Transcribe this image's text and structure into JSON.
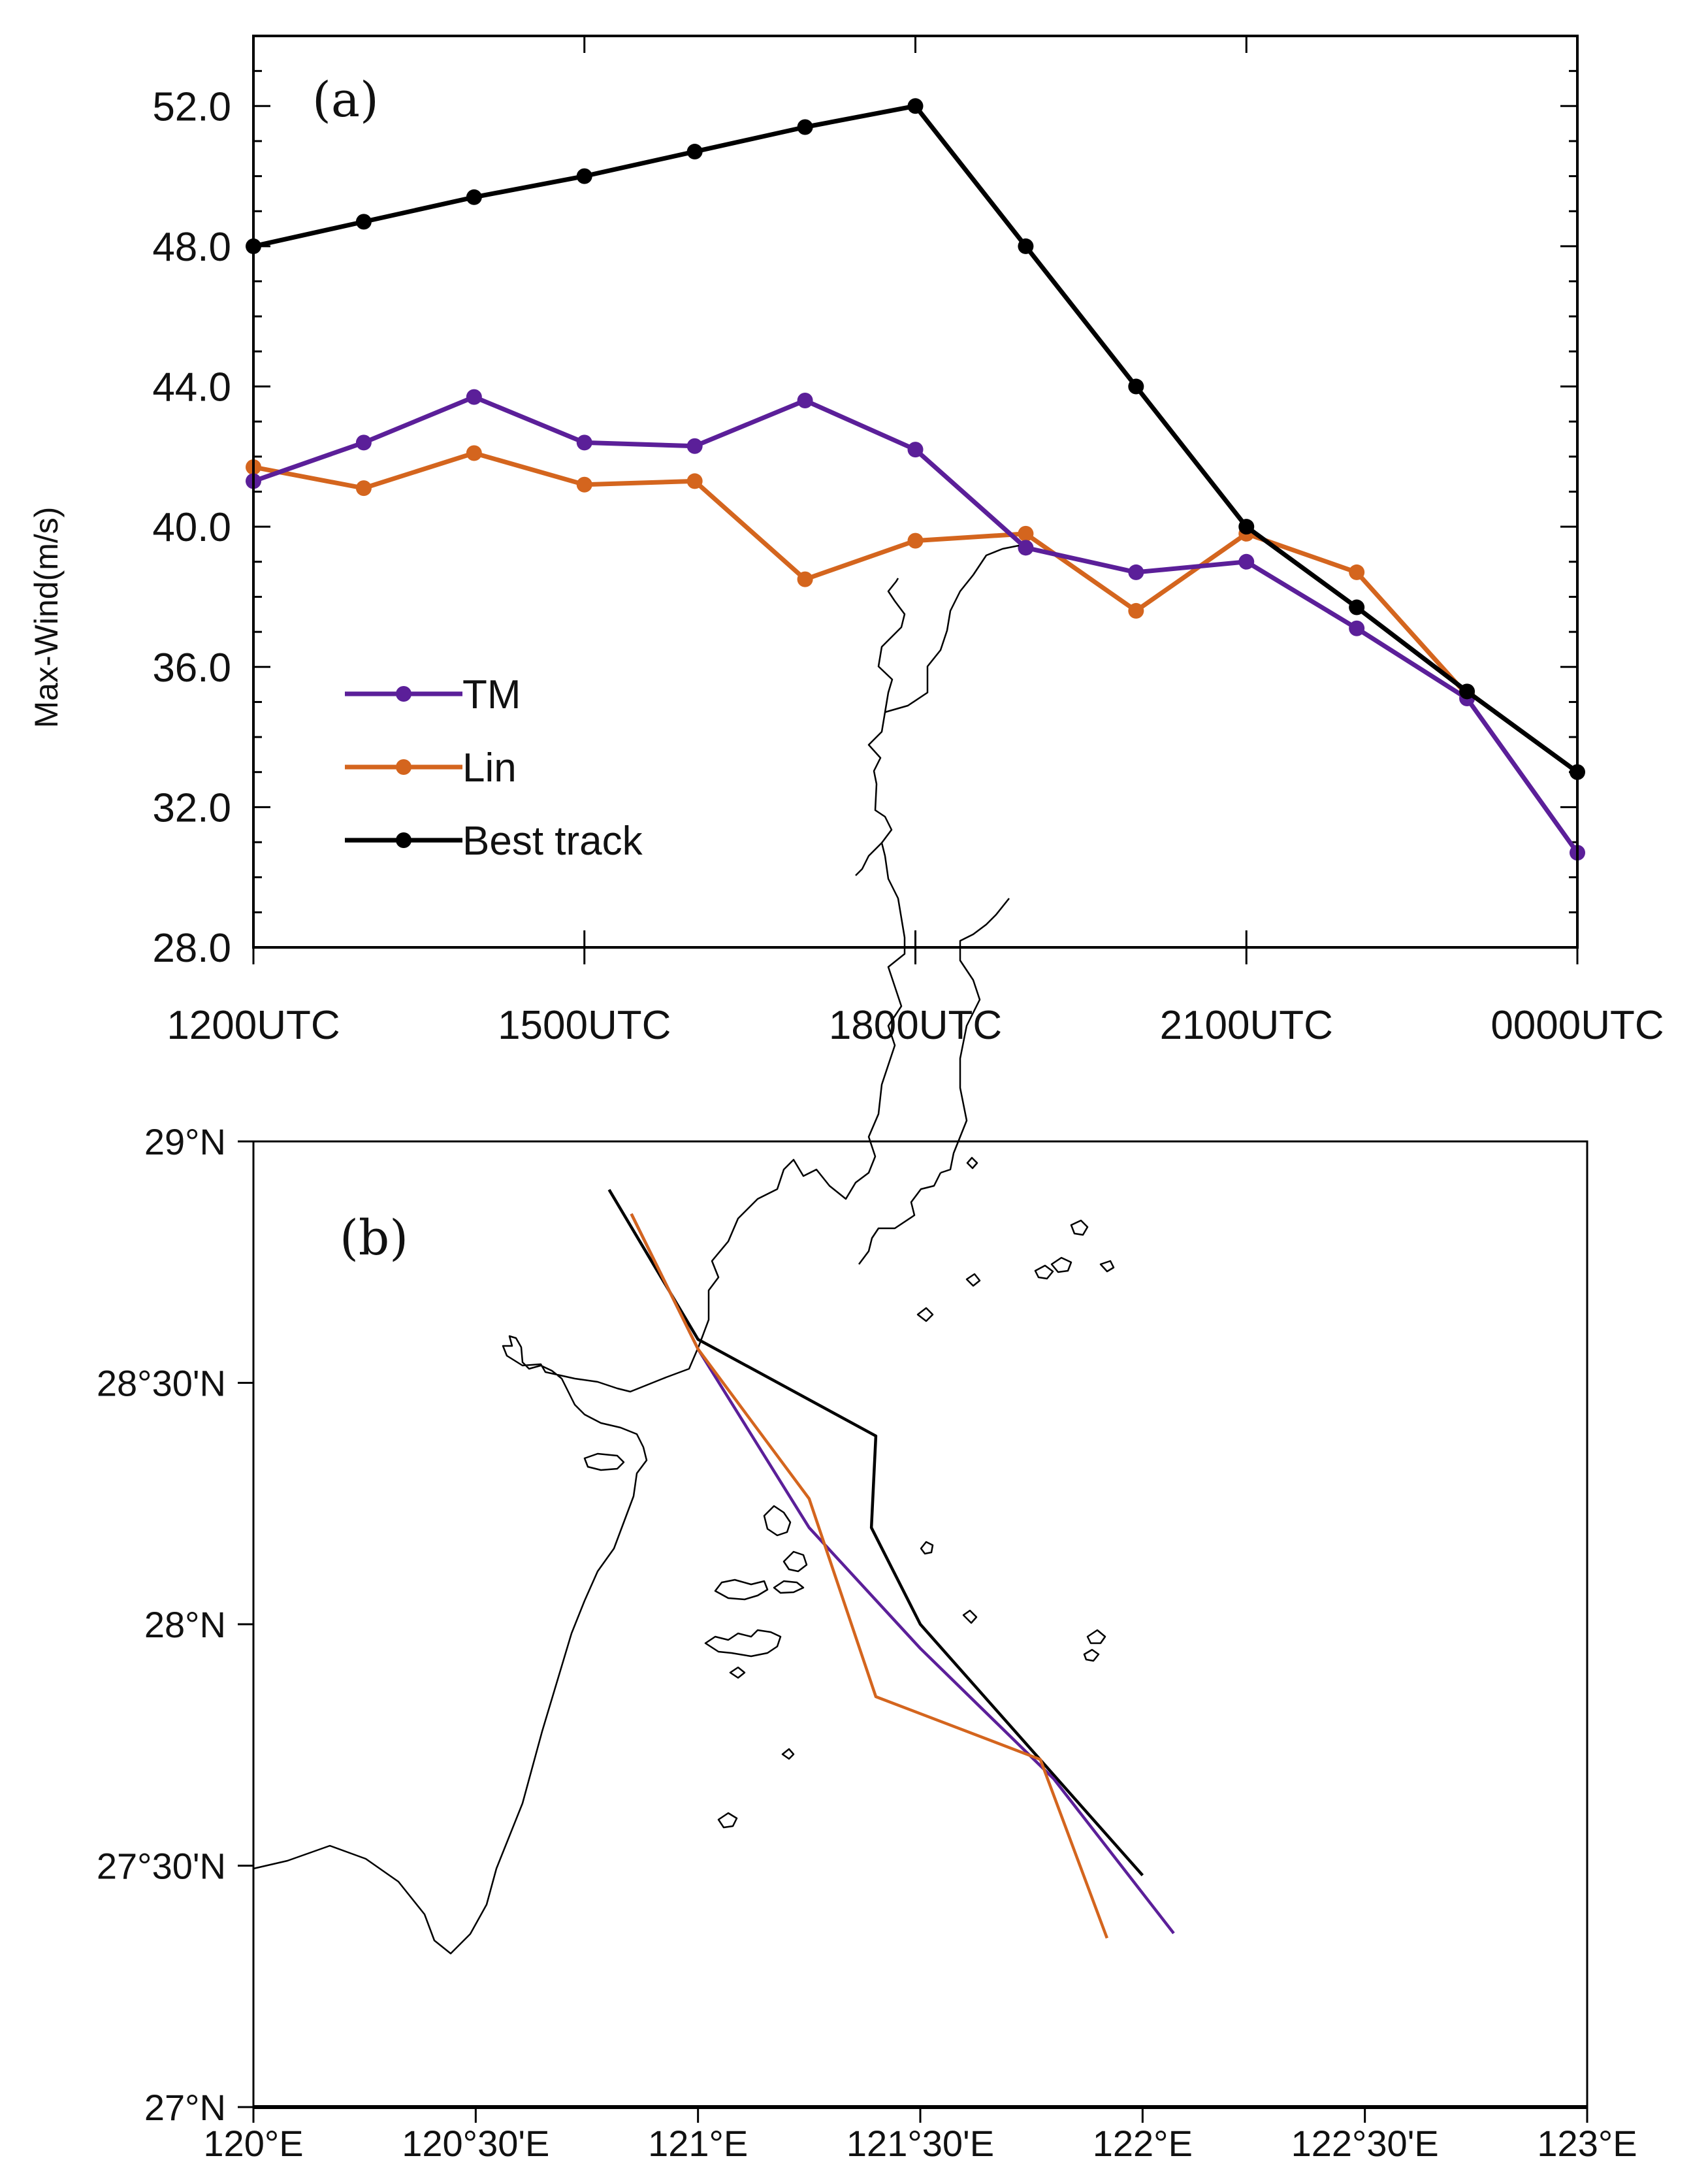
{
  "chart_data": [
    {
      "type": "line",
      "panel_label": "(a)",
      "ylabel": "Max-Wind(m/s)",
      "xlabel": "",
      "ylim": [
        28,
        54
      ],
      "yticks": [
        28,
        32,
        36,
        40,
        44,
        48,
        52
      ],
      "ytick_labels": [
        "28.0",
        "32.0",
        "36.0",
        "40.0",
        "44.0",
        "48.0",
        "52.0"
      ],
      "x": [
        0,
        1,
        2,
        3,
        4,
        5,
        6,
        7,
        8,
        9,
        10,
        11,
        12
      ],
      "xlim": [
        0,
        12
      ],
      "xticks": [
        0,
        3,
        6,
        9,
        12
      ],
      "xtick_labels": [
        "1200UTC",
        "1500UTC",
        "1800UTC",
        "2100UTC",
        "0000UTC"
      ],
      "legend_position": "lower-left",
      "series": [
        {
          "name": "TM",
          "color": "#5b1f99",
          "values": [
            41.3,
            42.4,
            43.7,
            42.4,
            42.3,
            43.6,
            42.2,
            39.4,
            38.7,
            39.0,
            37.1,
            35.1,
            30.7
          ]
        },
        {
          "name": "Lin",
          "color": "#d4651e",
          "values": [
            41.7,
            41.1,
            42.1,
            41.2,
            41.3,
            38.5,
            39.6,
            39.8,
            37.6,
            39.8,
            38.7,
            35.2,
            null
          ]
        },
        {
          "name": "Best track",
          "color": "#000000",
          "values": [
            48.0,
            48.7,
            49.4,
            50.0,
            50.7,
            51.4,
            52.0,
            48.0,
            44.0,
            40.0,
            37.7,
            35.3,
            33.0
          ]
        }
      ]
    },
    {
      "type": "line",
      "panel_label": "(b)",
      "xlim": [
        120.0,
        123.0
      ],
      "ylim": [
        27.0,
        29.0
      ],
      "xticks": [
        120.0,
        120.5,
        121.0,
        121.5,
        122.0,
        122.5,
        123.0
      ],
      "xtick_labels": [
        "120°E",
        "120°30'E",
        "121°E",
        "121°30'E",
        "122°E",
        "122°30'E",
        "123°E"
      ],
      "yticks": [
        27.0,
        27.5,
        28.0,
        28.5,
        29.0
      ],
      "ytick_labels": [
        "27°N",
        "27°30'N",
        "28°N",
        "28°30'N",
        "29°N"
      ],
      "series": [
        {
          "name": "Best track",
          "color": "#000000",
          "lon": [
            120.8,
            121.0,
            121.4,
            121.39,
            121.5,
            122.0
          ],
          "lat": [
            28.9,
            28.59,
            28.39,
            28.2,
            28.0,
            27.48
          ]
        },
        {
          "name": "TM",
          "color": "#5b1f99",
          "lon": [
            120.85,
            121.0,
            121.25,
            121.5,
            121.8,
            122.07
          ],
          "lat": [
            28.85,
            28.57,
            28.2,
            27.95,
            27.68,
            27.36
          ]
        },
        {
          "name": "Lin",
          "color": "#d4651e",
          "lon": [
            120.85,
            121.0,
            121.25,
            121.4,
            121.77,
            121.92
          ],
          "lat": [
            28.85,
            28.57,
            28.26,
            27.85,
            27.72,
            27.35
          ]
        }
      ]
    }
  ]
}
